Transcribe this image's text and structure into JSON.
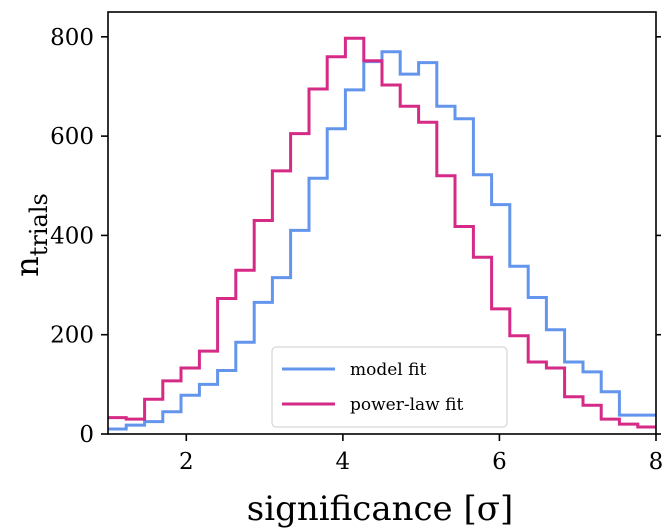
{
  "chart_data": {
    "type": "line",
    "xlabel": "significance [σ]",
    "ylabel_main": "n",
    "ylabel_sub": "trials",
    "xlim": [
      1,
      8
    ],
    "ylim": [
      0,
      850
    ],
    "xticks": [
      2,
      4,
      6,
      8
    ],
    "yticks": [
      0,
      200,
      400,
      600,
      800
    ],
    "bin_edges": [
      1.0,
      1.233,
      1.467,
      1.7,
      1.933,
      2.167,
      2.4,
      2.633,
      2.867,
      3.1,
      3.333,
      3.567,
      3.8,
      4.033,
      4.267,
      4.5,
      4.733,
      4.967,
      5.2,
      5.433,
      5.667,
      5.9,
      6.133,
      6.367,
      6.6,
      6.833,
      7.067,
      7.3,
      7.533,
      7.767,
      8.0
    ],
    "series": [
      {
        "name": "model fit",
        "color": "#6495ED",
        "values": [
          10,
          18,
          25,
          45,
          78,
          100,
          128,
          185,
          265,
          315,
          410,
          515,
          615,
          693,
          750,
          770,
          725,
          748,
          660,
          635,
          522,
          462,
          338,
          275,
          210,
          145,
          125,
          85,
          38,
          38
        ]
      },
      {
        "name": "power-law fit",
        "color": "#D62A87",
        "values": [
          33,
          30,
          70,
          107,
          133,
          167,
          273,
          330,
          430,
          530,
          605,
          695,
          760,
          797,
          752,
          703,
          660,
          628,
          520,
          418,
          356,
          252,
          198,
          145,
          133,
          75,
          58,
          30,
          20,
          14
        ]
      }
    ],
    "legend_position": "lower-center"
  }
}
